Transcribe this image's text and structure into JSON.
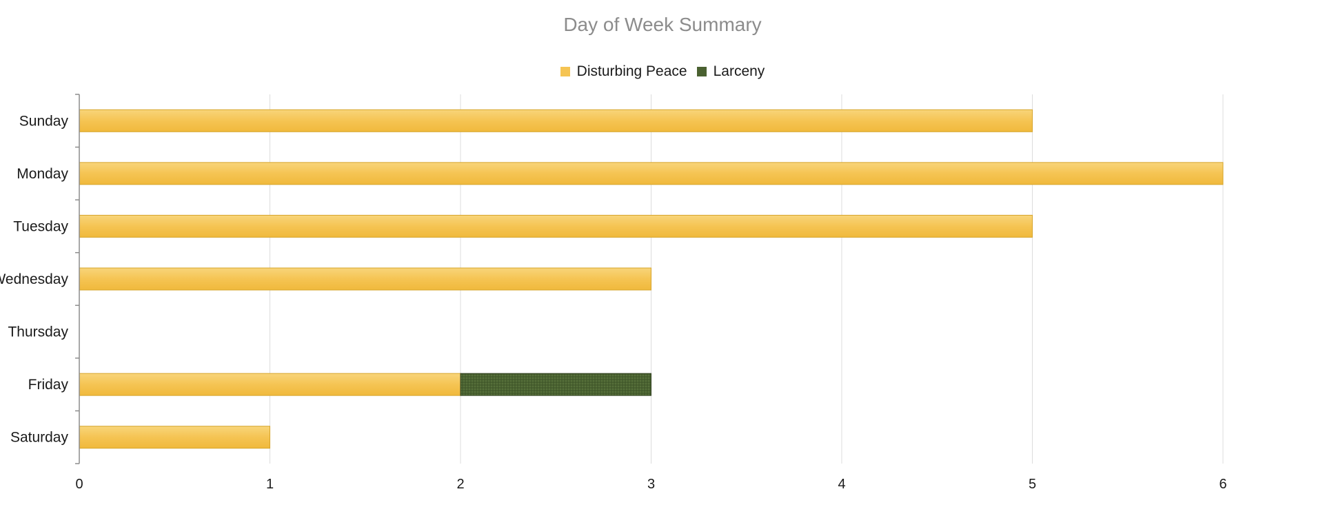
{
  "chart_data": {
    "type": "bar",
    "orientation": "horizontal",
    "stacked": true,
    "title": "Day of Week Summary",
    "xlabel": "",
    "ylabel": "",
    "xlim": [
      0,
      6.5
    ],
    "x_ticks": [
      0,
      1,
      2,
      3,
      4,
      5,
      6
    ],
    "grid": true,
    "legend_position": "top-center",
    "categories": [
      "Sunday",
      "Monday",
      "Tuesday",
      "Wednesday",
      "Thursday",
      "Friday",
      "Saturday"
    ],
    "series": [
      {
        "name": "Disturbing Peace",
        "color": "#f5c453",
        "values": [
          5,
          6,
          5,
          3,
          0,
          2,
          1
        ]
      },
      {
        "name": "Larceny",
        "color": "#4a6131",
        "values": [
          0,
          0,
          0,
          0,
          0,
          1,
          0
        ]
      }
    ]
  }
}
